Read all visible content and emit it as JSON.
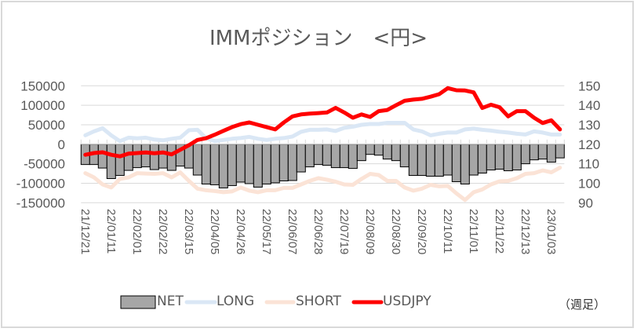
{
  "chart_data": {
    "type": "bar+line",
    "title": "IMMポジション　<円>",
    "note": "（週足）",
    "xlabel": "",
    "ylabel_left": "",
    "ylabel_right": "",
    "ylim_left": [
      -150000,
      150000
    ],
    "ylim_right": [
      90,
      150
    ],
    "yticks_left": [
      "150000",
      "100000",
      "50000",
      "0",
      "-50000",
      "-100000",
      "-150000"
    ],
    "yticks_right": [
      "150",
      "140",
      "130",
      "120",
      "110",
      "100",
      "90"
    ],
    "xtick_labels": [
      "21/12/21",
      "22/01/11",
      "22/02/01",
      "22/02/22",
      "22/03/15",
      "22/04/05",
      "22/04/26",
      "22/05/17",
      "22/06/07",
      "22/06/28",
      "22/07/19",
      "22/08/09",
      "22/08/30",
      "22/09/20",
      "22/10/11",
      "22/11/01",
      "22/11/22",
      "22/12/13",
      "23/01/03"
    ],
    "grid": true,
    "legend_position": "bottom",
    "categories": [
      "21/12/21",
      "21/12/28",
      "22/01/04",
      "22/01/11",
      "22/01/18",
      "22/01/25",
      "22/02/01",
      "22/02/08",
      "22/02/15",
      "22/02/22",
      "22/03/01",
      "22/03/08",
      "22/03/15",
      "22/03/22",
      "22/03/29",
      "22/04/05",
      "22/04/12",
      "22/04/19",
      "22/04/26",
      "22/05/03",
      "22/05/10",
      "22/05/17",
      "22/05/24",
      "22/05/31",
      "22/06/07",
      "22/06/14",
      "22/06/21",
      "22/06/28",
      "22/07/05",
      "22/07/12",
      "22/07/19",
      "22/07/26",
      "22/08/02",
      "22/08/09",
      "22/08/16",
      "22/08/23",
      "22/08/30",
      "22/09/06",
      "22/09/13",
      "22/09/20",
      "22/09/27",
      "22/10/04",
      "22/10/11",
      "22/10/18",
      "22/10/25",
      "22/11/01",
      "22/11/08",
      "22/11/15",
      "22/11/22",
      "22/11/29",
      "22/12/06",
      "22/12/13",
      "22/12/20",
      "22/12/27",
      "23/01/03",
      "23/01/10"
    ],
    "series": [
      {
        "name": "NET",
        "type": "bar",
        "axis": "left",
        "color": "#a6a6a6",
        "values": [
          -52000,
          -52000,
          -61000,
          -88000,
          -80000,
          -67000,
          -60000,
          -58000,
          -65000,
          -61000,
          -67000,
          -56000,
          -61000,
          -79000,
          -102000,
          -104000,
          -112000,
          -106000,
          -97000,
          -101000,
          -110000,
          -102000,
          -99000,
          -94000,
          -93000,
          -71000,
          -58000,
          -52000,
          -54000,
          -60000,
          -60000,
          -62000,
          -42000,
          -26000,
          -28000,
          -38000,
          -42000,
          -58000,
          -80000,
          -80000,
          -82000,
          -82000,
          -79000,
          -96000,
          -102000,
          -79000,
          -74000,
          -66000,
          -64000,
          -68000,
          -66000,
          -50000,
          -40000,
          -38000,
          -46000,
          -35000
        ]
      },
      {
        "name": "LONG",
        "type": "line",
        "axis": "left",
        "color": "#dae7f5",
        "values": [
          23000,
          33000,
          41000,
          23000,
          8000,
          17000,
          15000,
          17000,
          12000,
          10000,
          14000,
          17000,
          36000,
          37000,
          15000,
          8000,
          11000,
          14000,
          16000,
          19000,
          14000,
          11000,
          14000,
          16000,
          20000,
          32000,
          37000,
          37000,
          38000,
          34000,
          42000,
          45000,
          50000,
          52000,
          52000,
          55000,
          55000,
          55000,
          38000,
          33000,
          23000,
          27000,
          30000,
          30000,
          38000,
          40000,
          37000,
          35000,
          32000,
          30000,
          27000,
          25000,
          33000,
          30000,
          25000,
          25000
        ]
      },
      {
        "name": "SHORT",
        "type": "line",
        "axis": "left",
        "color": "#fbe3d6",
        "values": [
          -74000,
          -85000,
          -103000,
          -111000,
          -89000,
          -85000,
          -74000,
          -75000,
          -76000,
          -74000,
          -85000,
          -72000,
          -94000,
          -114000,
          -118000,
          -120000,
          -123000,
          -121000,
          -111000,
          -119000,
          -123000,
          -118000,
          -118000,
          -112000,
          -112000,
          -103000,
          -94000,
          -87000,
          -91000,
          -96000,
          -103000,
          -104000,
          -89000,
          -76000,
          -79000,
          -94000,
          -94000,
          -111000,
          -119000,
          -114000,
          -104000,
          -108000,
          -107000,
          -126000,
          -143000,
          -123000,
          -116000,
          -103000,
          -95000,
          -94000,
          -87000,
          -76000,
          -74000,
          -67000,
          -72000,
          -60000
        ]
      },
      {
        "name": "USDJPY",
        "type": "line",
        "axis": "right",
        "color": "#ff0000",
        "values": [
          114.6,
          115.5,
          115.9,
          114.6,
          113.8,
          115.2,
          115.5,
          115.8,
          115.4,
          115.8,
          114.8,
          117.2,
          119.5,
          122.2,
          123.1,
          124.9,
          126.9,
          128.8,
          130.3,
          131.2,
          130.0,
          128.8,
          127.6,
          131.2,
          134.3,
          135.3,
          135.7,
          136.0,
          136.3,
          138.7,
          136.3,
          133.6,
          135.3,
          134.0,
          137.0,
          137.6,
          140.0,
          142.3,
          142.9,
          143.3,
          144.4,
          145.7,
          148.8,
          147.7,
          147.6,
          146.6,
          138.6,
          140.3,
          139.0,
          134.3,
          137.0,
          137.0,
          133.6,
          130.9,
          132.3,
          127.6
        ]
      }
    ]
  },
  "legend": {
    "items": [
      {
        "label": "NET"
      },
      {
        "label": "LONG"
      },
      {
        "label": "SHORT"
      },
      {
        "label": "USDJPY"
      }
    ]
  }
}
